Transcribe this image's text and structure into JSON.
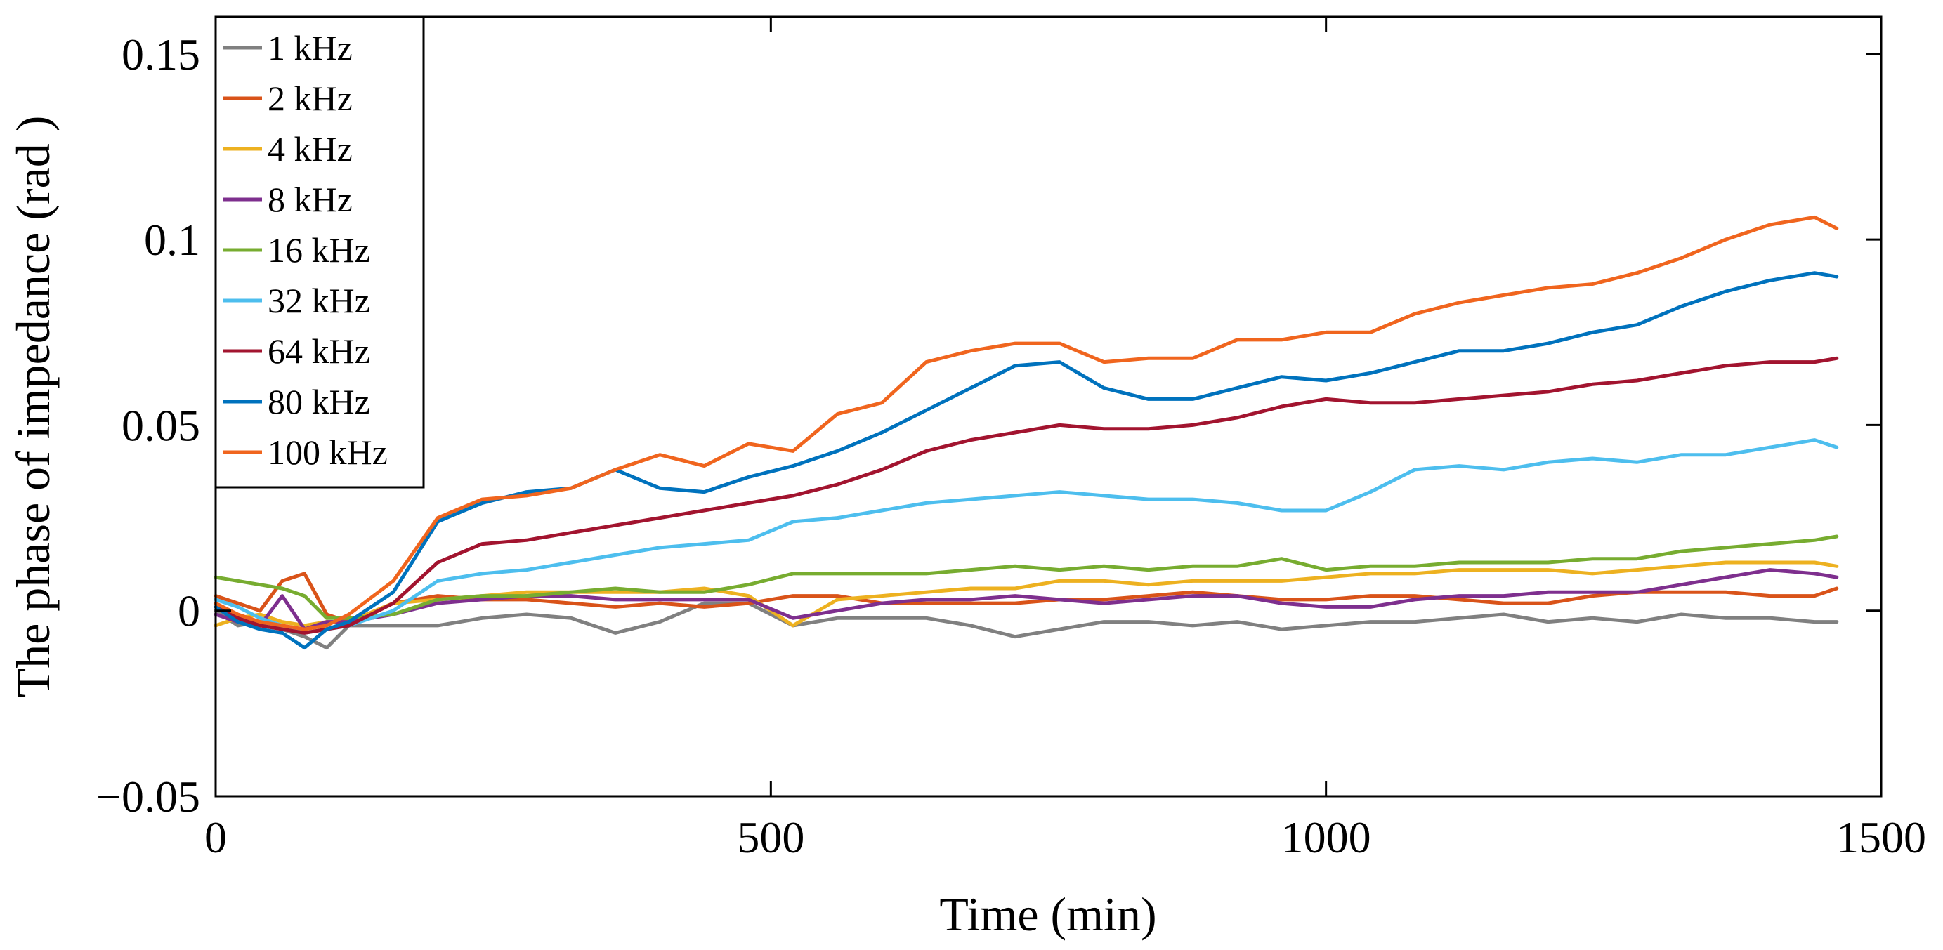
{
  "chart_data": {
    "type": "line",
    "title": "",
    "xlabel": "Time (min)",
    "ylabel": "The phase of impedance (rad )",
    "xlim": [
      0,
      1500
    ],
    "ylim": [
      -0.05,
      0.16
    ],
    "xticks": [
      0,
      500,
      1000,
      1500
    ],
    "xtick_labels": [
      "0",
      "500",
      "1000",
      "1500"
    ],
    "yticks": [
      -0.05,
      0,
      0.05,
      0.1,
      0.15
    ],
    "ytick_labels": [
      "−0.05",
      "0",
      "0.05",
      "0.1",
      "0.15"
    ],
    "grid": false,
    "legend_position": "top-left",
    "x": [
      0,
      20,
      40,
      60,
      80,
      100,
      120,
      160,
      200,
      240,
      280,
      320,
      360,
      400,
      440,
      480,
      520,
      560,
      600,
      640,
      680,
      720,
      760,
      800,
      840,
      880,
      920,
      960,
      1000,
      1040,
      1080,
      1120,
      1160,
      1200,
      1240,
      1280,
      1320,
      1360,
      1400,
      1440,
      1460
    ],
    "series": [
      {
        "name": "1 kHz",
        "color": "#808080",
        "values": [
          0.0,
          -0.004,
          -0.003,
          -0.005,
          -0.007,
          -0.01,
          -0.004,
          -0.004,
          -0.004,
          -0.002,
          -0.001,
          -0.002,
          -0.006,
          -0.003,
          0.002,
          0.002,
          -0.004,
          -0.002,
          -0.002,
          -0.002,
          -0.004,
          -0.007,
          -0.005,
          -0.003,
          -0.003,
          -0.004,
          -0.003,
          -0.005,
          -0.004,
          -0.003,
          -0.003,
          -0.002,
          -0.001,
          -0.003,
          -0.002,
          -0.003,
          -0.001,
          -0.002,
          -0.002,
          -0.003,
          -0.003
        ]
      },
      {
        "name": "2 kHz",
        "color": "#D95319",
        "values": [
          0.004,
          0.002,
          0.0,
          0.008,
          0.01,
          -0.001,
          -0.003,
          0.002,
          0.004,
          0.003,
          0.003,
          0.002,
          0.001,
          0.002,
          0.001,
          0.002,
          0.004,
          0.004,
          0.002,
          0.002,
          0.002,
          0.002,
          0.003,
          0.003,
          0.004,
          0.005,
          0.004,
          0.003,
          0.003,
          0.004,
          0.004,
          0.003,
          0.002,
          0.002,
          0.004,
          0.005,
          0.005,
          0.005,
          0.004,
          0.004,
          0.006
        ]
      },
      {
        "name": "4 kHz",
        "color": "#EDB120",
        "values": [
          -0.004,
          -0.002,
          -0.001,
          -0.003,
          -0.004,
          -0.003,
          -0.003,
          0.002,
          0.003,
          0.004,
          0.005,
          0.005,
          0.005,
          0.005,
          0.006,
          0.004,
          -0.004,
          0.003,
          0.004,
          0.005,
          0.006,
          0.006,
          0.008,
          0.008,
          0.007,
          0.008,
          0.008,
          0.008,
          0.009,
          0.01,
          0.01,
          0.011,
          0.011,
          0.011,
          0.01,
          0.011,
          0.012,
          0.013,
          0.013,
          0.013,
          0.012
        ]
      },
      {
        "name": "8 kHz",
        "color": "#7E2F8E",
        "values": [
          -0.001,
          -0.003,
          -0.004,
          0.004,
          -0.005,
          -0.003,
          -0.003,
          -0.001,
          0.002,
          0.003,
          0.004,
          0.004,
          0.003,
          0.003,
          0.003,
          0.003,
          -0.002,
          0.0,
          0.002,
          0.003,
          0.003,
          0.004,
          0.003,
          0.002,
          0.003,
          0.004,
          0.004,
          0.002,
          0.001,
          0.001,
          0.003,
          0.004,
          0.004,
          0.005,
          0.005,
          0.005,
          0.007,
          0.009,
          0.011,
          0.01,
          0.009
        ]
      },
      {
        "name": "16 kHz",
        "color": "#77AC30",
        "values": [
          0.009,
          0.008,
          0.007,
          0.006,
          0.004,
          -0.002,
          -0.002,
          -0.001,
          0.003,
          0.004,
          0.004,
          0.005,
          0.006,
          0.005,
          0.005,
          0.007,
          0.01,
          0.01,
          0.01,
          0.01,
          0.011,
          0.012,
          0.011,
          0.012,
          0.011,
          0.012,
          0.012,
          0.014,
          0.011,
          0.012,
          0.012,
          0.013,
          0.013,
          0.013,
          0.014,
          0.014,
          0.016,
          0.017,
          0.018,
          0.019,
          0.02
        ]
      },
      {
        "name": "32 kHz",
        "color": "#4DBEEE",
        "values": [
          0.003,
          0.001,
          -0.002,
          -0.004,
          -0.006,
          -0.005,
          -0.004,
          0.0,
          0.008,
          0.01,
          0.011,
          0.013,
          0.015,
          0.017,
          0.018,
          0.019,
          0.024,
          0.025,
          0.027,
          0.029,
          0.03,
          0.031,
          0.032,
          0.031,
          0.03,
          0.03,
          0.029,
          0.027,
          0.027,
          0.032,
          0.038,
          0.039,
          0.038,
          0.04,
          0.041,
          0.04,
          0.042,
          0.042,
          0.044,
          0.046,
          0.044
        ]
      },
      {
        "name": "64 kHz",
        "color": "#A2142F",
        "values": [
          0.002,
          -0.002,
          -0.004,
          -0.005,
          -0.006,
          -0.005,
          -0.004,
          0.002,
          0.013,
          0.018,
          0.019,
          0.021,
          0.023,
          0.025,
          0.027,
          0.029,
          0.031,
          0.034,
          0.038,
          0.043,
          0.046,
          0.048,
          0.05,
          0.049,
          0.049,
          0.05,
          0.052,
          0.055,
          0.057,
          0.056,
          0.056,
          0.057,
          0.058,
          0.059,
          0.061,
          0.062,
          0.064,
          0.066,
          0.067,
          0.067,
          0.068
        ]
      },
      {
        "name": "80 kHz",
        "color": "#0072BD",
        "values": [
          0.001,
          -0.003,
          -0.005,
          -0.006,
          -0.01,
          -0.005,
          -0.003,
          0.005,
          0.024,
          0.029,
          0.032,
          0.033,
          0.038,
          0.033,
          0.032,
          0.036,
          0.039,
          0.043,
          0.048,
          0.054,
          0.06,
          0.066,
          0.067,
          0.06,
          0.057,
          0.057,
          0.06,
          0.063,
          0.062,
          0.064,
          0.067,
          0.07,
          0.07,
          0.072,
          0.075,
          0.077,
          0.082,
          0.086,
          0.089,
          0.091,
          0.09
        ]
      },
      {
        "name": "100 kHz",
        "color": "#F0651E",
        "values": [
          0.002,
          -0.001,
          -0.003,
          -0.004,
          -0.005,
          -0.004,
          -0.001,
          0.008,
          0.025,
          0.03,
          0.031,
          0.033,
          0.038,
          0.042,
          0.039,
          0.045,
          0.043,
          0.053,
          0.056,
          0.067,
          0.07,
          0.072,
          0.072,
          0.067,
          0.068,
          0.068,
          0.073,
          0.073,
          0.075,
          0.075,
          0.08,
          0.083,
          0.085,
          0.087,
          0.088,
          0.091,
          0.095,
          0.1,
          0.104,
          0.106,
          0.103
        ]
      }
    ]
  }
}
